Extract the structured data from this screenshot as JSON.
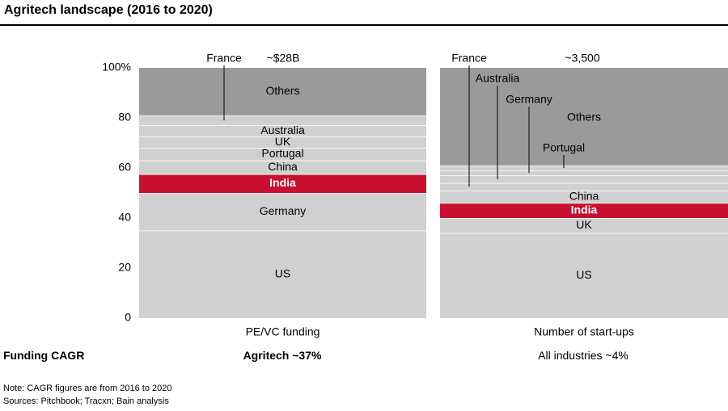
{
  "title": "Agritech landscape (2016 to 2020)",
  "colors": {
    "segment": "#d0d0d0",
    "others": "#9a9a9a",
    "highlight": "#c8102e",
    "separator": "#ffffff"
  },
  "chart_data": {
    "type": "bar",
    "subtype": "stacked-100",
    "ylim": [
      0,
      100
    ],
    "yticks": [
      "0",
      "20",
      "40",
      "60",
      "80",
      "100%"
    ],
    "bars": [
      {
        "category": "PE/VC funding",
        "total_label": "~$28B",
        "segments": [
          {
            "name": "US",
            "value": 35,
            "highlight": false
          },
          {
            "name": "Germany",
            "value": 15,
            "highlight": false
          },
          {
            "name": "India",
            "value": 7.5,
            "highlight": true
          },
          {
            "name": "China",
            "value": 5.5,
            "highlight": false
          },
          {
            "name": "Portugal",
            "value": 5,
            "highlight": false
          },
          {
            "name": "UK",
            "value": 4.5,
            "highlight": false
          },
          {
            "name": "Australia",
            "value": 4.5,
            "highlight": false
          },
          {
            "name": "France",
            "value": 4,
            "highlight": false
          },
          {
            "name": "Others",
            "value": 19,
            "highlight": false,
            "others": true
          }
        ]
      },
      {
        "category": "Number of start-ups",
        "total_label": "~3,500",
        "segments": [
          {
            "name": "US",
            "value": 34,
            "highlight": false
          },
          {
            "name": "UK",
            "value": 6,
            "highlight": false
          },
          {
            "name": "India",
            "value": 6,
            "highlight": true
          },
          {
            "name": "China",
            "value": 5,
            "highlight": false
          },
          {
            "name": "France",
            "value": 3,
            "highlight": false
          },
          {
            "name": "Australia",
            "value": 3,
            "highlight": false
          },
          {
            "name": "Germany",
            "value": 2,
            "highlight": false
          },
          {
            "name": "Portugal",
            "value": 2,
            "highlight": false
          },
          {
            "name": "Others",
            "value": 39,
            "highlight": false,
            "others": true
          }
        ]
      }
    ]
  },
  "cagr": {
    "label": "Funding CAGR",
    "left": "Agritech ~37%",
    "right": "All industries ~4%"
  },
  "footer": {
    "note": "Note: CAGR figures are from 2016 to 2020",
    "sources": "Sources: Pitchbook; Tracxn; Bain analysis"
  }
}
